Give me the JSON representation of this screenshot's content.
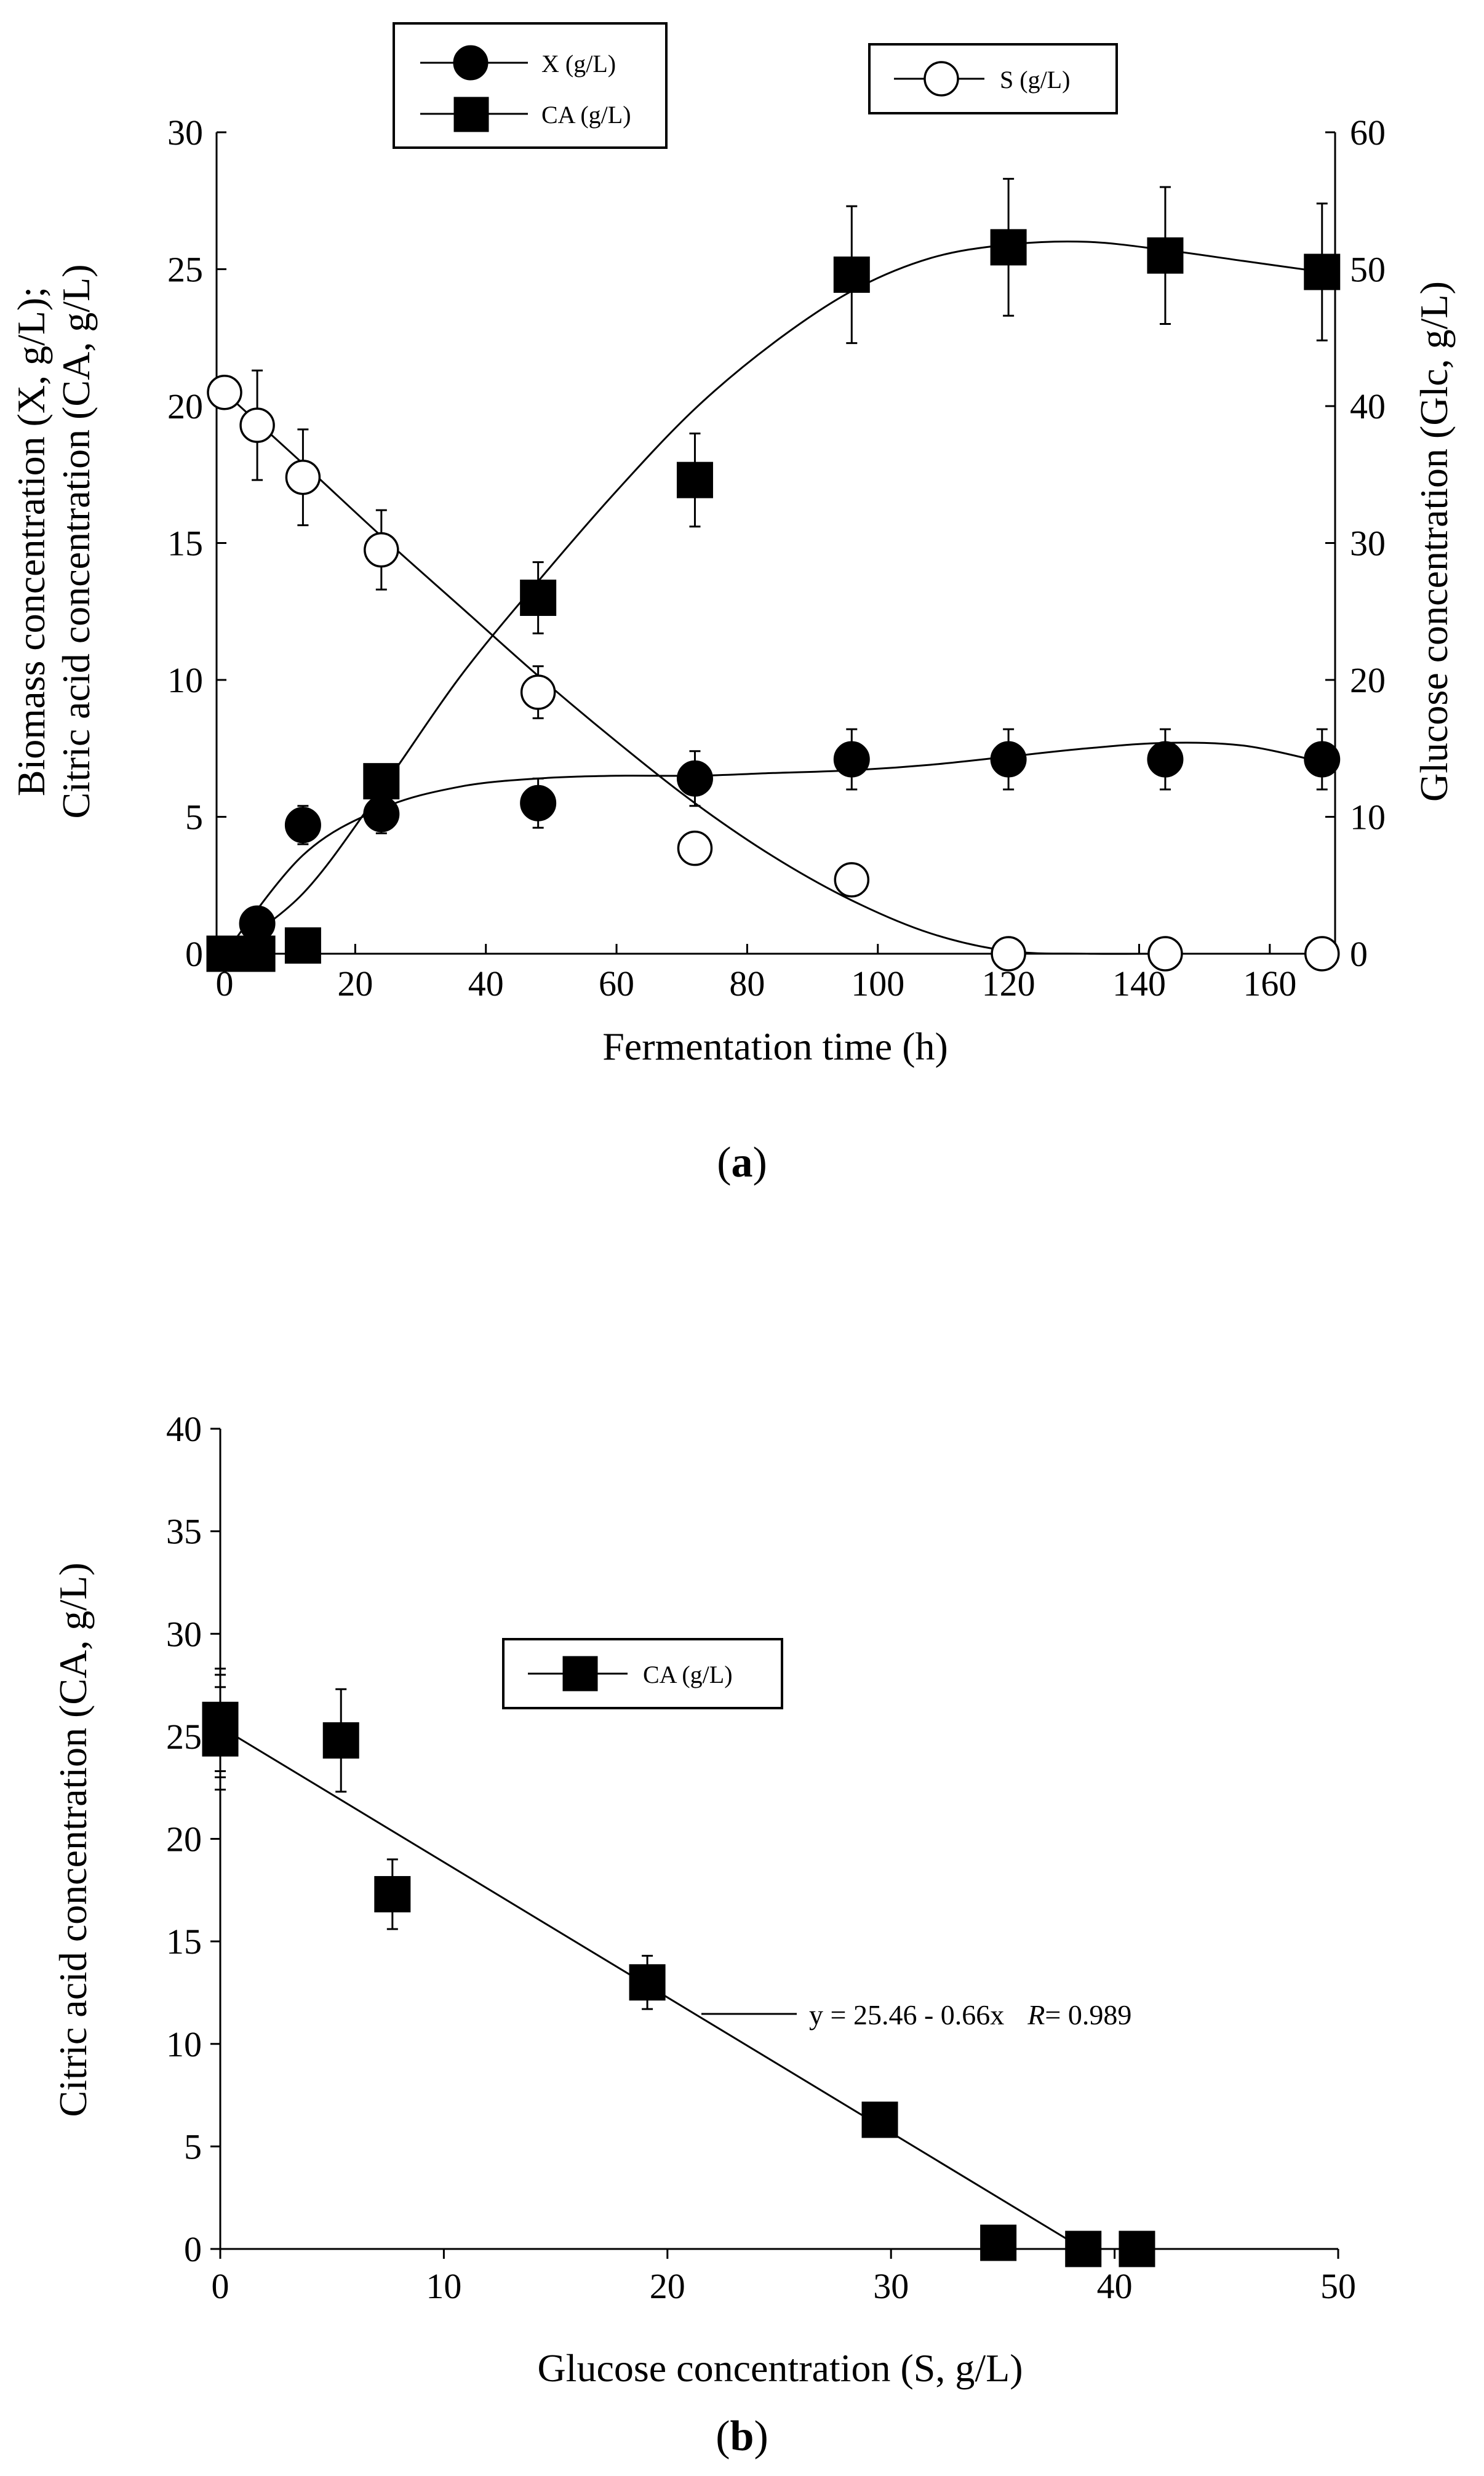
{
  "chart_data": [
    {
      "id": "a",
      "type": "scatter",
      "panel_label_open": "(",
      "panel_label_letter": "a",
      "panel_label_close": ")",
      "xlabel": "Fermentation time (h)",
      "ylabel_left_line1": "Biomass concentration (X, g/L);",
      "ylabel_left_line2": "Citric acid concentration (CA, g/L)",
      "ylabel_right": "Glucose concentration (Glc, g/L)",
      "xlim": [
        0,
        170
      ],
      "xticks": [
        0,
        20,
        40,
        60,
        80,
        100,
        120,
        140,
        160
      ],
      "ylim_left": [
        0,
        30
      ],
      "yticks_left": [
        0,
        5,
        10,
        15,
        20,
        25,
        30
      ],
      "ylim_right": [
        0,
        60
      ],
      "yticks_right": [
        0,
        10,
        20,
        30,
        40,
        50,
        60
      ],
      "legend_left": [
        {
          "label": "X (g/L)",
          "marker": "filled-circle"
        },
        {
          "label": "CA (g/L)",
          "marker": "filled-square"
        }
      ],
      "legend_right": [
        {
          "label": "S (g/L)",
          "marker": "open-circle"
        }
      ],
      "series": [
        {
          "name": "X (g/L)",
          "axis": "left",
          "marker": "filled-circle",
          "x": [
            0,
            5,
            12,
            24,
            48,
            72,
            96,
            120,
            144,
            168
          ],
          "y": [
            0,
            1.1,
            4.7,
            5.1,
            5.5,
            6.4,
            7.1,
            7.1,
            7.1,
            7.1
          ],
          "err": [
            0,
            0.2,
            0.7,
            0.7,
            0.9,
            1.0,
            1.1,
            1.1,
            1.1,
            1.1
          ],
          "fit_x": [
            0,
            12,
            24,
            36,
            48,
            60,
            72,
            84,
            96,
            108,
            120,
            132,
            144,
            156,
            168
          ],
          "fit_y": [
            0,
            3.6,
            5.3,
            6.1,
            6.4,
            6.5,
            6.5,
            6.6,
            6.7,
            6.9,
            7.2,
            7.5,
            7.7,
            7.6,
            7.0
          ]
        },
        {
          "name": "CA (g/L)",
          "axis": "left",
          "marker": "filled-square",
          "x": [
            0,
            2,
            5,
            12,
            24,
            48,
            72,
            96,
            120,
            144,
            168
          ],
          "y": [
            0,
            0,
            0,
            0.3,
            6.3,
            13.0,
            17.3,
            24.8,
            25.8,
            25.5,
            24.9
          ],
          "err": [
            0,
            0,
            0,
            0,
            0.5,
            1.3,
            1.7,
            2.5,
            2.5,
            2.5,
            2.5
          ],
          "fit_x": [
            0,
            12,
            24,
            36,
            48,
            60,
            72,
            84,
            96,
            108,
            120,
            132,
            144,
            156,
            168
          ],
          "fit_y": [
            0,
            2.2,
            6.0,
            10.1,
            13.6,
            16.9,
            19.9,
            22.3,
            24.2,
            25.4,
            25.9,
            26.0,
            25.7,
            25.3,
            24.9
          ]
        },
        {
          "name": "S (g/L)",
          "axis": "right",
          "marker": "open-circle",
          "x": [
            0,
            5,
            12,
            24,
            48,
            72,
            96,
            120,
            144,
            168
          ],
          "y": [
            41.0,
            38.6,
            34.8,
            29.5,
            19.1,
            7.7,
            5.4,
            0,
            0,
            0
          ],
          "err": [
            0,
            4.0,
            3.5,
            2.9,
            1.9,
            0.8,
            0.5,
            0,
            0,
            0
          ],
          "fit_x": [
            0,
            12,
            24,
            36,
            48,
            60,
            72,
            84,
            96,
            108,
            120,
            132,
            144,
            156,
            168
          ],
          "fit_y": [
            41.0,
            35.8,
            30.5,
            25.4,
            20.3,
            15.5,
            11.0,
            7.1,
            3.9,
            1.5,
            0.2,
            0,
            0,
            0,
            0
          ]
        }
      ]
    },
    {
      "id": "b",
      "type": "scatter",
      "panel_label_open": "(",
      "panel_label_letter": "b",
      "panel_label_close": ")",
      "xlabel": "Glucose concentration (S, g/L)",
      "ylabel": "Citric acid concentration (CA, g/L)",
      "xlim": [
        0,
        50
      ],
      "xticks": [
        0,
        10,
        20,
        30,
        40,
        50
      ],
      "ylim": [
        0,
        40
      ],
      "yticks": [
        0,
        5,
        10,
        15,
        20,
        25,
        30,
        35,
        40
      ],
      "legend": [
        {
          "label": "CA (g/L)",
          "marker": "filled-square"
        }
      ],
      "series": [
        {
          "name": "CA (g/L)",
          "marker": "filled-square",
          "x": [
            0,
            0,
            0,
            5.4,
            7.7,
            19.1,
            29.5,
            34.8,
            38.6,
            41.0
          ],
          "y": [
            25.8,
            25.5,
            24.9,
            24.8,
            17.3,
            13.0,
            6.3,
            0.3,
            0,
            0
          ],
          "err": [
            2.5,
            2.5,
            2.5,
            2.5,
            1.7,
            1.3,
            0,
            0,
            0,
            0
          ]
        }
      ],
      "fit": {
        "intercept": 25.46,
        "slope": -0.66,
        "x_range": [
          0,
          38.6
        ]
      },
      "annotation_equation": "y = 25.46 - 0.66x",
      "annotation_r_label": "R",
      "annotation_r_value": "= 0.989"
    }
  ]
}
